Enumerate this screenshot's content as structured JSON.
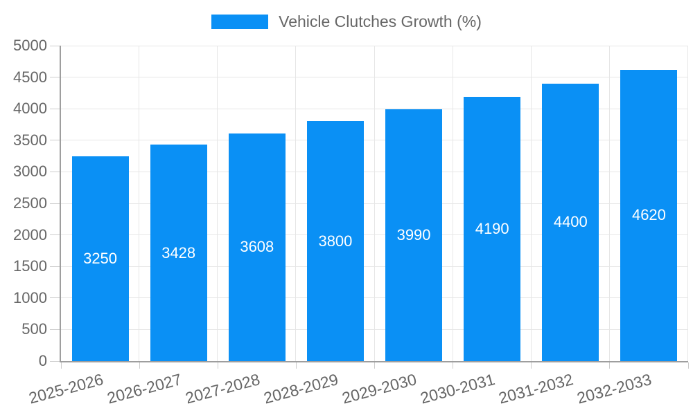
{
  "chart_data": {
    "type": "bar",
    "title": "Vehicle Clutches Growth (%)",
    "legend_position": "top",
    "categories": [
      "2025-2026",
      "2026-2027",
      "2027-2028",
      "2028-2029",
      "2029-2030",
      "2030-2031",
      "2031-2032",
      "2032-2033"
    ],
    "series": [
      {
        "name": "Vehicle Clutches Growth (%)",
        "values": [
          3250,
          3428,
          3608,
          3800,
          3990,
          4190,
          4400,
          4620
        ]
      }
    ],
    "value_labels_shown": true,
    "xlabel": "",
    "ylabel": "",
    "ylim": [
      0,
      5000
    ],
    "ytick_step": 500,
    "grid": true,
    "colors": {
      "bar": "#0a90f5",
      "value_label": "#ffffff",
      "axis_text": "#666666",
      "grid_line": "#e6e6e6",
      "axis_line": "#9e9e9e",
      "tick": "#cccccc",
      "background": "#ffffff"
    }
  }
}
